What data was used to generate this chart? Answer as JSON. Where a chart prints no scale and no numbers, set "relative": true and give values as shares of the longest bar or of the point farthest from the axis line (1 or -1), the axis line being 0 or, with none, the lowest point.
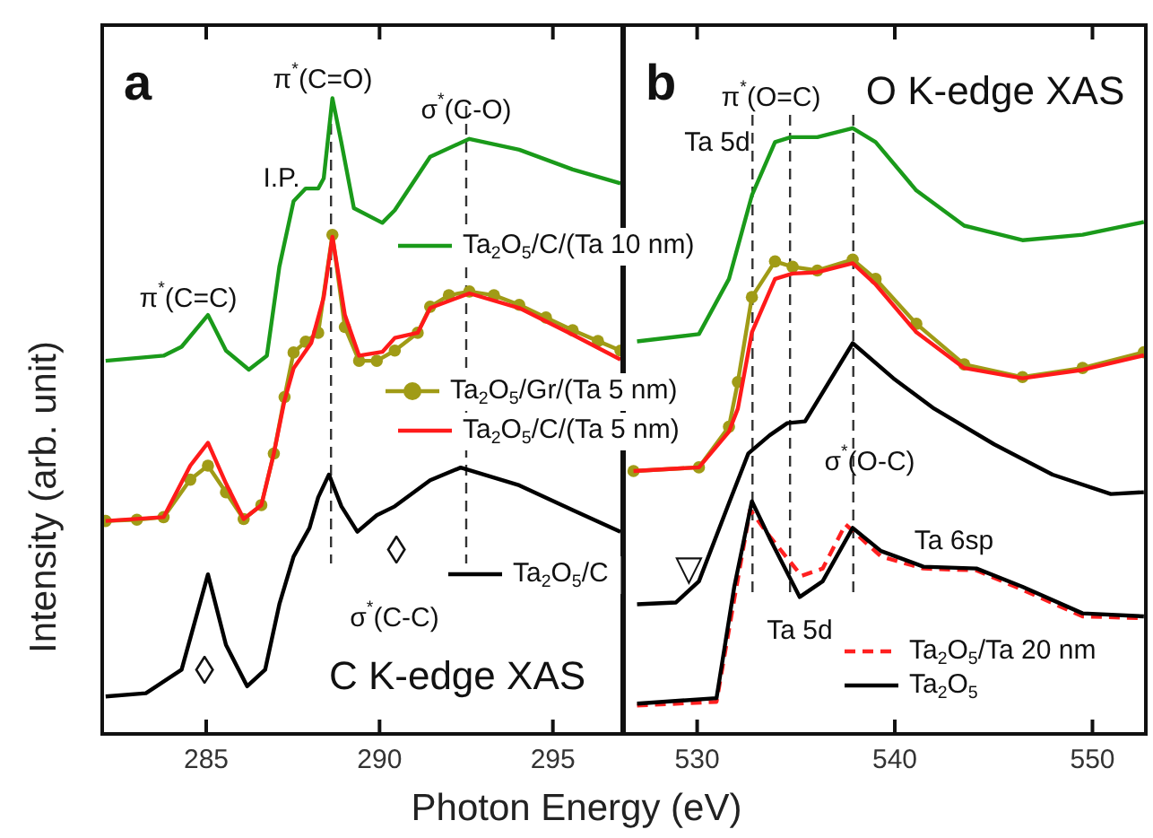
{
  "chart_data": [
    {
      "type": "line",
      "title": "a",
      "xlabel": "Photon Energy (eV)",
      "ylabel": "Intensity (arb. unit)",
      "relative": true,
      "xlim": [
        282.0,
        297.0
      ],
      "xticks": [
        285,
        290,
        295
      ],
      "tick_labels": "x",
      "legend": "right",
      "marker": "none",
      "series": [
        {
          "name": "Ta$_{2}$O$_{5}$/C/(Ta 10 nm)",
          "color": "#1a9a1a",
          "x": [
            282.1,
            283.77,
            284.29,
            285.05,
            285.57,
            286.23,
            286.75,
            287.11,
            287.52,
            287.87,
            288.23,
            288.39,
            288.64,
            288.9,
            289.26,
            290.08,
            290.44,
            291.46,
            292.59,
            294.03,
            295.57,
            296.95
          ],
          "values": [
            0.587,
            0.595,
            0.609,
            0.659,
            0.603,
            0.573,
            0.595,
            0.735,
            0.838,
            0.858,
            0.858,
            0.874,
            1.0,
            0.93,
            0.827,
            0.804,
            0.824,
            0.908,
            0.936,
            0.919,
            0.888,
            0.866
          ]
        },
        {
          "name": "Ta$_{2}$O$_{5}$/Gr/(Ta 5 nm)",
          "color": "#a09b16",
          "marker": "circle",
          "x": [
            282.1,
            283.0,
            283.77,
            284.54,
            285.05,
            285.57,
            286.08,
            286.59,
            286.95,
            287.26,
            287.52,
            287.87,
            288.23,
            288.64,
            289.0,
            289.41,
            289.92,
            290.44,
            291.1,
            291.46,
            292.0,
            292.59,
            293.3,
            294.03,
            294.8,
            295.57,
            296.3,
            296.95
          ],
          "values": [
            0.335,
            0.337,
            0.341,
            0.4,
            0.422,
            0.38,
            0.338,
            0.36,
            0.441,
            0.53,
            0.6,
            0.617,
            0.631,
            0.785,
            0.64,
            0.587,
            0.587,
            0.603,
            0.631,
            0.672,
            0.69,
            0.696,
            0.69,
            0.675,
            0.655,
            0.635,
            0.618,
            0.603
          ]
        },
        {
          "name": "Ta$_{2}$O$_{5}$/C/(Ta 5 nm)",
          "color": "#ff1a1a",
          "x": [
            282.1,
            283.77,
            284.54,
            285.05,
            285.57,
            286.08,
            286.59,
            286.95,
            287.26,
            287.52,
            288.03,
            288.39,
            288.64,
            289.0,
            289.41,
            290.08,
            290.44,
            291.1,
            291.46,
            292.59,
            294.03,
            295.57,
            296.95
          ],
          "values": [
            0.335,
            0.341,
            0.422,
            0.458,
            0.394,
            0.338,
            0.36,
            0.441,
            0.525,
            0.575,
            0.615,
            0.687,
            0.782,
            0.659,
            0.595,
            0.601,
            0.623,
            0.631,
            0.67,
            0.693,
            0.67,
            0.628,
            0.589
          ]
        },
        {
          "name": "Ta$_{2}$O$_{5}$/C",
          "color": "#000000",
          "x": [
            282.1,
            283.26,
            284.29,
            285.05,
            285.57,
            286.18,
            286.7,
            287.11,
            287.52,
            287.98,
            288.23,
            288.54,
            288.9,
            289.36,
            289.92,
            290.44,
            291.46,
            292.34,
            294.03,
            295.57,
            296.95
          ],
          "values": [
            0.059,
            0.064,
            0.101,
            0.251,
            0.14,
            0.075,
            0.101,
            0.204,
            0.279,
            0.324,
            0.372,
            0.408,
            0.358,
            0.318,
            0.344,
            0.358,
            0.399,
            0.419,
            0.391,
            0.352,
            0.318
          ]
        }
      ],
      "ref_lines": [
        {
          "axis": "x",
          "value": 288.6,
          "color": "#333333",
          "line_style": "dashed"
        },
        {
          "axis": "x",
          "value": 292.5,
          "color": "#333333",
          "line_style": "dashed"
        }
      ],
      "annotations": [
        "π$^{*}$(C=O)",
        "σ$^{*}$(C-O)",
        "I.P.",
        "π$^{*}$(C=C)",
        "σ$^{*}$(C-C)",
        "◊",
        "◊",
        "C K-edge XAS"
      ]
    },
    {
      "type": "line",
      "title": "b",
      "relative": true,
      "xlim": [
        526.3,
        552.7
      ],
      "xticks": [
        530,
        540,
        550
      ],
      "tick_labels": "x",
      "legend": "bottom right",
      "marker": "none",
      "series": [
        {
          "color": "#1a9a1a",
          "x": [
            526.96,
            530.09,
            531.61,
            532.77,
            533.94,
            534.74,
            536.08,
            537.87,
            539.03,
            541.09,
            543.51,
            546.46,
            549.5,
            552.6
          ],
          "values": [
            0.648,
            0.66,
            0.751,
            0.889,
            0.977,
            0.985,
            0.985,
            1.0,
            0.977,
            0.897,
            0.839,
            0.815,
            0.824,
            0.845
          ]
        },
        {
          "color": "#a09b16",
          "marker": "circle",
          "x": [
            526.78,
            530.09,
            531.61,
            532.06,
            532.77,
            533.94,
            534.83,
            536.08,
            537.87,
            539.03,
            541.09,
            543.51,
            546.46,
            549.5,
            552.6
          ],
          "values": [
            0.434,
            0.44,
            0.507,
            0.581,
            0.721,
            0.78,
            0.771,
            0.765,
            0.783,
            0.751,
            0.677,
            0.61,
            0.589,
            0.604,
            0.63
          ]
        },
        {
          "color": "#ff1a1a",
          "x": [
            526.78,
            530.09,
            531.61,
            532.06,
            532.77,
            533.94,
            534.83,
            536.08,
            537.87,
            539.03,
            541.09,
            543.51,
            546.46,
            549.5,
            552.6
          ],
          "values": [
            0.434,
            0.44,
            0.499,
            0.537,
            0.663,
            0.751,
            0.76,
            0.762,
            0.777,
            0.742,
            0.663,
            0.604,
            0.587,
            0.601,
            0.625
          ]
        },
        {
          "color": "#000000",
          "x": [
            526.96,
            528.93,
            530.09,
            531.61,
            532.59,
            533.67,
            534.56,
            535.46,
            537.87,
            539.93,
            541.99,
            545.03,
            547.98,
            550.93,
            552.6
          ],
          "values": [
            0.214,
            0.217,
            0.252,
            0.381,
            0.463,
            0.493,
            0.513,
            0.516,
            0.645,
            0.587,
            0.537,
            0.478,
            0.428,
            0.396,
            0.399
          ]
        },
        {
          "name": "Ta$_{2}$O$_{5}$/Ta 20 nm",
          "color": "#ff2020",
          "line_style": "dashed",
          "x": [
            526.96,
            530.98,
            531.88,
            532.68,
            533.67,
            535.28,
            536.35,
            537.51,
            539.3,
            541.45,
            544.13,
            546.46,
            549.5,
            552.6
          ],
          "values": [
            0.047,
            0.053,
            0.223,
            0.37,
            0.326,
            0.261,
            0.273,
            0.346,
            0.293,
            0.273,
            0.27,
            0.238,
            0.194,
            0.191
          ]
        },
        {
          "name": "Ta$_{2}$O$_{5}$",
          "color": "#000000",
          "x": [
            526.96,
            530.98,
            531.88,
            532.77,
            533.67,
            535.19,
            536.35,
            537.87,
            539.3,
            541.45,
            544.13,
            546.46,
            549.5,
            552.6
          ],
          "values": [
            0.05,
            0.059,
            0.243,
            0.384,
            0.323,
            0.226,
            0.252,
            0.34,
            0.302,
            0.276,
            0.273,
            0.243,
            0.199,
            0.194
          ]
        }
      ],
      "ref_lines": [
        {
          "axis": "x",
          "value": 532.8,
          "color": "#333333",
          "line_style": "dashed"
        },
        {
          "axis": "x",
          "value": 534.7,
          "color": "#333333",
          "line_style": "dashed"
        },
        {
          "axis": "x",
          "value": 537.9,
          "color": "#333333",
          "line_style": "dashed"
        }
      ],
      "annotations": [
        "π$^{*}$(O=C)",
        "Ta 5d",
        "σ$^{*}$(O-C)",
        "Ta 6sp",
        "Ta 5d",
        "▽",
        "O K-edge XAS"
      ]
    }
  ]
}
